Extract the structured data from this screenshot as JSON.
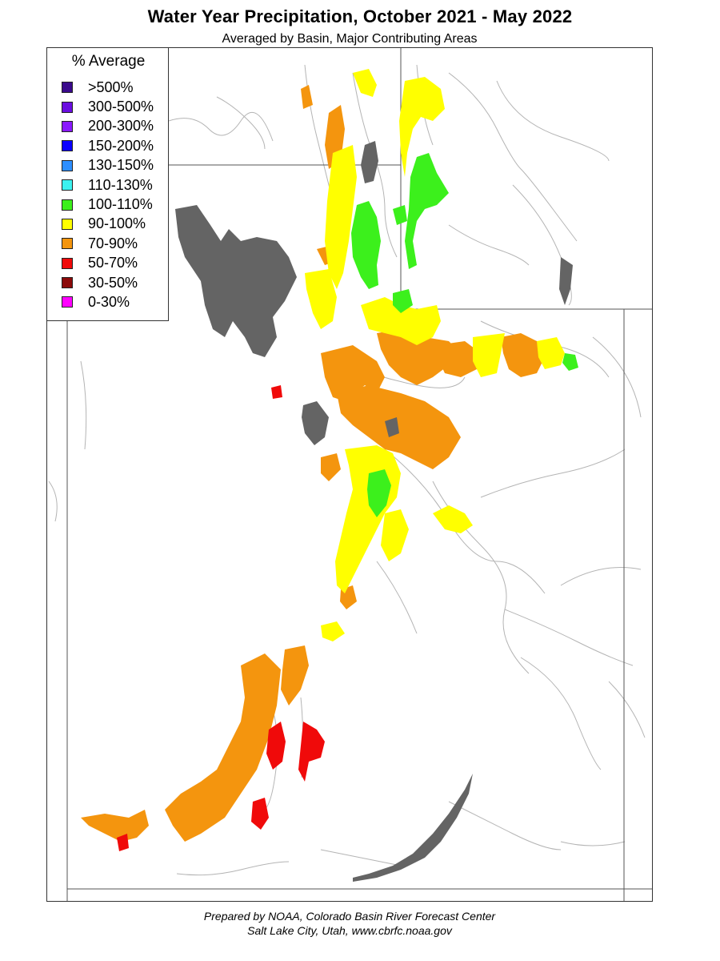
{
  "title": "Water Year Precipitation, October 2021 - May 2022",
  "subtitle": "Averaged by Basin, Major Contributing Areas",
  "legend": {
    "title": "% Average",
    "items": [
      {
        "label": ">500%",
        "color": "#3a0a8c"
      },
      {
        "label": "300-500%",
        "color": "#6a0ee0"
      },
      {
        "label": "200-300%",
        "color": "#8a19ff"
      },
      {
        "label": "150-200%",
        "color": "#0a00ff"
      },
      {
        "label": "130-150%",
        "color": "#2e8fff"
      },
      {
        "label": "110-130%",
        "color": "#3cf2f0"
      },
      {
        "label": "100-110%",
        "color": "#3cf01c"
      },
      {
        "label": "90-100%",
        "color": "#ffff00"
      },
      {
        "label": "70-90%",
        "color": "#f4950e"
      },
      {
        "label": "50-70%",
        "color": "#f00a0a"
      },
      {
        "label": "30-50%",
        "color": "#8c0a0a"
      },
      {
        "label": "0-30%",
        "color": "#ff00ff"
      }
    ]
  },
  "colors": {
    "lake": "#646464",
    "boundary": "#555555",
    "river": "#aaaaaa"
  },
  "credit": {
    "line1": "Prepared by NOAA, Colorado Basin River Forecast Center",
    "line2": "Salt Lake City, Utah, www.cbrfc.noaa.gov"
  }
}
